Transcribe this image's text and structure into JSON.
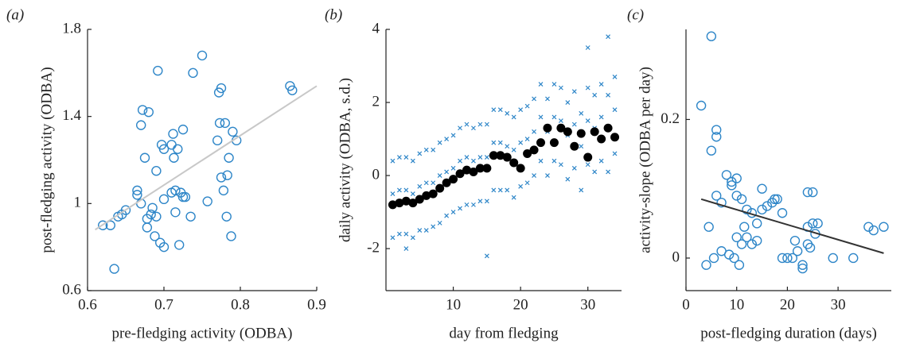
{
  "chart_data": [
    {
      "type": "scatter",
      "panel": "(a)",
      "xlabel": "pre-fledging activity (ODBA)",
      "ylabel": "post-fledging activity (ODBA)",
      "xlim": [
        0.6,
        0.9
      ],
      "ylim": [
        0.6,
        1.8
      ],
      "xticks": [
        0.6,
        0.7,
        0.8,
        0.9
      ],
      "yticks": [
        0.6,
        1,
        1.4,
        1.8
      ],
      "series": [
        {
          "marker": "circle",
          "color": "#2e86c8",
          "x": [
            0.62,
            0.63,
            0.635,
            0.64,
            0.645,
            0.65,
            0.665,
            0.665,
            0.67,
            0.67,
            0.672,
            0.675,
            0.678,
            0.678,
            0.68,
            0.683,
            0.685,
            0.688,
            0.69,
            0.69,
            0.692,
            0.695,
            0.697,
            0.7,
            0.7,
            0.7,
            0.71,
            0.71,
            0.712,
            0.713,
            0.715,
            0.715,
            0.718,
            0.72,
            0.722,
            0.725,
            0.725,
            0.728,
            0.735,
            0.738,
            0.75,
            0.757,
            0.77,
            0.772,
            0.773,
            0.775,
            0.775,
            0.778,
            0.78,
            0.782,
            0.783,
            0.785,
            0.788,
            0.79,
            0.795,
            0.865,
            0.868
          ],
          "y": [
            0.9,
            0.9,
            0.7,
            0.94,
            0.95,
            0.97,
            1.06,
            1.04,
            1.0,
            1.36,
            1.43,
            1.21,
            0.93,
            0.89,
            1.42,
            0.95,
            0.98,
            0.85,
            1.15,
            0.94,
            1.61,
            0.82,
            1.27,
            1.02,
            0.8,
            1.25,
            1.05,
            1.27,
            1.32,
            1.21,
            0.96,
            1.06,
            1.25,
            0.81,
            1.05,
            1.34,
            1.03,
            1.03,
            0.94,
            1.6,
            1.68,
            1.01,
            1.29,
            1.51,
            1.37,
            1.53,
            1.12,
            1.06,
            1.37,
            0.94,
            1.13,
            1.21,
            0.85,
            1.33,
            1.29,
            1.54,
            1.52
          ]
        }
      ],
      "trend": {
        "color": "#c8c8c8",
        "x": [
          0.61,
          0.9
        ],
        "y": [
          0.88,
          1.54
        ]
      }
    },
    {
      "type": "scatter",
      "panel": "(b)",
      "xlabel": "day from fledging",
      "ylabel": "daily activity (ODBA, s.d.)",
      "xlim": [
        0,
        35
      ],
      "ylim": [
        -3.15,
        4
      ],
      "xticks": [
        10,
        20,
        30
      ],
      "yticks": [
        -2,
        0,
        2,
        4
      ],
      "series": [
        {
          "marker": "cross",
          "color": "#2e86c8",
          "x": [
            1,
            1,
            1,
            2,
            2,
            2,
            3,
            3,
            3,
            4,
            4,
            4,
            5,
            5,
            5,
            6,
            6,
            6,
            7,
            7,
            7,
            8,
            8,
            8,
            9,
            9,
            9,
            10,
            10,
            10,
            11,
            11,
            11,
            12,
            12,
            12,
            13,
            13,
            13,
            14,
            14,
            14,
            15,
            15,
            15,
            16,
            16,
            16,
            17,
            17,
            17,
            18,
            18,
            18,
            19,
            19,
            19,
            20,
            20,
            20,
            21,
            21,
            21,
            22,
            22,
            22,
            23,
            23,
            23,
            24,
            24,
            24,
            25,
            25,
            25,
            26,
            26,
            26,
            27,
            27,
            27,
            28,
            28,
            28,
            29,
            29,
            29,
            30,
            30,
            30,
            31,
            31,
            31,
            32,
            32,
            32,
            33,
            33,
            33,
            34,
            34,
            34,
            30,
            33,
            15,
            3
          ],
          "y": [
            -1.7,
            -0.5,
            0.4,
            -1.6,
            -0.4,
            0.5,
            -1.6,
            -0.4,
            0.5,
            -1.7,
            -0.5,
            0.4,
            -1.5,
            -0.3,
            0.6,
            -1.5,
            -0.2,
            0.7,
            -1.4,
            -0.2,
            0.7,
            -1.3,
            0,
            0.9,
            -1.1,
            0.1,
            1.0,
            -1.0,
            0.2,
            1.1,
            -0.9,
            0.4,
            1.3,
            -0.8,
            0.5,
            1.4,
            -0.8,
            0.4,
            1.3,
            -0.7,
            0.5,
            1.4,
            -0.7,
            0.5,
            1.4,
            -0.4,
            0.9,
            1.8,
            -0.4,
            0.9,
            1.8,
            -0.4,
            0.8,
            1.7,
            -0.6,
            0.7,
            1.6,
            -0.3,
            0.9,
            1.8,
            -0.2,
            1.0,
            1.9,
            0,
            1.2,
            2.1,
            0.4,
            1.6,
            2.5,
            0,
            1.2,
            2.1,
            0.4,
            1.6,
            2.5,
            0.3,
            1.5,
            2.4,
            -0.1,
            1.1,
            2.0,
            0.2,
            1.4,
            2.3,
            -0.4,
            0.8,
            1.7,
            0.3,
            1.5,
            2.4,
            0.1,
            1.3,
            2.2,
            0.4,
            1.6,
            2.5,
            0.1,
            1.3,
            2.2,
            0.6,
            1.8,
            2.7,
            3.5,
            3.8,
            -2.2,
            -2.0
          ]
        },
        {
          "marker": "dot",
          "color": "#000000",
          "x": [
            1,
            2,
            3,
            4,
            5,
            6,
            7,
            8,
            9,
            10,
            11,
            12,
            13,
            14,
            15,
            16,
            17,
            18,
            19,
            20,
            21,
            22,
            23,
            24,
            25,
            26,
            27,
            28,
            29,
            30,
            31,
            32,
            33,
            34
          ],
          "y": [
            -0.8,
            -0.75,
            -0.7,
            -0.75,
            -0.65,
            -0.55,
            -0.5,
            -0.35,
            -0.2,
            -0.1,
            0.05,
            0.15,
            0.1,
            0.2,
            0.2,
            0.55,
            0.55,
            0.5,
            0.35,
            0.2,
            0.6,
            0.7,
            0.9,
            1.3,
            0.9,
            1.3,
            1.2,
            0.8,
            1.15,
            0.5,
            1.2,
            1.0,
            1.3,
            1.05
          ]
        }
      ]
    },
    {
      "type": "scatter",
      "panel": "(c)",
      "xlabel": "post-fledging duration (days)",
      "ylabel": "activity-slope (ODBA per day)",
      "xlim": [
        0,
        40.5
      ],
      "ylim": [
        -0.047,
        0.33
      ],
      "xticks": [
        0,
        10,
        20,
        30
      ],
      "yticks": [
        0,
        0.2
      ],
      "series": [
        {
          "marker": "circle",
          "color": "#2e86c8",
          "x": [
            3,
            4,
            4.5,
            5,
            5,
            5.5,
            6,
            6,
            6,
            7,
            7,
            8,
            8.5,
            9,
            9,
            9.5,
            10,
            10,
            10,
            10.5,
            11,
            11,
            11.5,
            12,
            12,
            13,
            13,
            14,
            14,
            15,
            15,
            16,
            17,
            17.5,
            18,
            19,
            19,
            20,
            21,
            21.5,
            22,
            23,
            23,
            24,
            24,
            24,
            24.5,
            25,
            25,
            25.5,
            26,
            29,
            33,
            36,
            37,
            39
          ],
          "y": [
            0.22,
            -0.01,
            0.045,
            0.155,
            0.32,
            0,
            0.185,
            0.175,
            0.09,
            0.01,
            0.08,
            0.12,
            0.005,
            0.11,
            0.105,
            0,
            0.115,
            0.09,
            0.03,
            -0.01,
            0.085,
            0.02,
            0.045,
            0.03,
            0.07,
            0.02,
            0.065,
            0.05,
            0.025,
            0.1,
            0.07,
            0.075,
            0.08,
            0.085,
            0.085,
            0.065,
            0,
            0,
            0,
            0.025,
            0.01,
            -0.01,
            -0.015,
            0.095,
            0.045,
            0.02,
            0.015,
            0.095,
            0.05,
            0.035,
            0.05,
            0,
            0,
            0.045,
            0.04,
            0.045
          ]
        }
      ],
      "trend": {
        "color": "#333333",
        "x": [
          3,
          39
        ],
        "y": [
          0.085,
          0.007
        ]
      }
    }
  ]
}
